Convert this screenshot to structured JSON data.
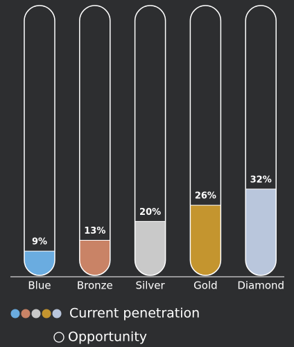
{
  "chart_data": {
    "type": "tube",
    "categories": [
      "Blue",
      "Bronze",
      "Silver",
      "Gold",
      "Diamond"
    ],
    "series": [
      {
        "name": "Current penetration",
        "colors": [
          "#6aace0",
          "#c98366",
          "#c9c9c9",
          "#c4952f",
          "#b9c6dc"
        ],
        "values": [
          9,
          13,
          20,
          26,
          32
        ],
        "value_labels": [
          "9%",
          "13%",
          "20%",
          "26%",
          "32%"
        ]
      },
      {
        "name": "Opportunity"
      }
    ],
    "ylim": [
      0,
      100
    ]
  }
}
